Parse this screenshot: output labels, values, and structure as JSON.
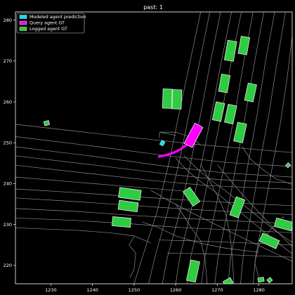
{
  "chart_data": {
    "type": "scatter",
    "title": "past: 1",
    "xlabel": "",
    "ylabel": "",
    "xlim": [
      1221.5,
      1288
    ],
    "ylim": [
      215.5,
      282
    ],
    "xticks": [
      1230,
      1240,
      1250,
      1260,
      1270,
      1280
    ],
    "yticks": [
      220,
      230,
      240,
      250,
      260,
      270,
      280
    ],
    "legend_position": "top-left",
    "legend": [
      {
        "label": "Modeled agent prediction",
        "color": "#00e5ee"
      },
      {
        "label": "Query agent GT",
        "color": "#ff00ff"
      },
      {
        "label": "Logged agent GT",
        "color": "#2ecc40"
      }
    ],
    "query_agent_gt": {
      "color": "#ff00ff",
      "x": [
        1256.0,
        1257.8,
        1259.6,
        1261.2,
        1262.5,
        1263.4,
        1264.0
      ],
      "y": [
        246.6,
        247.0,
        247.6,
        248.4,
        249.4,
        250.6,
        251.6
      ]
    },
    "query_agent_box": {
      "x": 1264.3,
      "y": 251.8,
      "length": 5.5,
      "width": 2.2,
      "heading_deg": 62
    },
    "modeled_agent_prediction": {
      "x": 1256.8,
      "y": 249.9,
      "length": 1.1,
      "width": 0.9,
      "heading_deg": 60
    },
    "logged_agents": [
      {
        "x": 1273.2,
        "y": 272.5,
        "length": 4.8,
        "width": 2.2,
        "heading_deg": 80
      },
      {
        "x": 1276.4,
        "y": 273.8,
        "length": 4.2,
        "width": 2.1,
        "heading_deg": 80
      },
      {
        "x": 1258.0,
        "y": 260.8,
        "length": 4.6,
        "width": 2.2,
        "heading_deg": 88
      },
      {
        "x": 1260.3,
        "y": 260.6,
        "length": 4.6,
        "width": 2.2,
        "heading_deg": 88
      },
      {
        "x": 1271.7,
        "y": 264.5,
        "length": 4.2,
        "width": 2.1,
        "heading_deg": 80
      },
      {
        "x": 1278.0,
        "y": 262.3,
        "length": 4.2,
        "width": 2.1,
        "heading_deg": 78
      },
      {
        "x": 1270.3,
        "y": 257.6,
        "length": 4.4,
        "width": 2.1,
        "heading_deg": 78
      },
      {
        "x": 1273.2,
        "y": 257.0,
        "length": 4.4,
        "width": 2.1,
        "heading_deg": 78
      },
      {
        "x": 1275.5,
        "y": 252.5,
        "length": 4.6,
        "width": 2.2,
        "heading_deg": 78
      },
      {
        "x": 1229.0,
        "y": 254.8,
        "length": 1.2,
        "width": 1.0,
        "heading_deg": 15
      },
      {
        "x": 1287.0,
        "y": 244.5,
        "length": 0.9,
        "width": 0.8,
        "heading_deg": 45
      },
      {
        "x": 1249.0,
        "y": 237.5,
        "length": 5.2,
        "width": 2.4,
        "heading_deg": -8
      },
      {
        "x": 1248.6,
        "y": 234.5,
        "length": 4.6,
        "width": 2.2,
        "heading_deg": -8
      },
      {
        "x": 1263.8,
        "y": 236.8,
        "length": 4.2,
        "width": 2.0,
        "heading_deg": -55
      },
      {
        "x": 1274.8,
        "y": 234.2,
        "length": 4.6,
        "width": 2.2,
        "heading_deg": 70
      },
      {
        "x": 1247.0,
        "y": 230.6,
        "length": 4.4,
        "width": 2.2,
        "heading_deg": -5
      },
      {
        "x": 1286.0,
        "y": 230.0,
        "length": 4.2,
        "width": 2.1,
        "heading_deg": -15
      },
      {
        "x": 1282.5,
        "y": 226.0,
        "length": 4.4,
        "width": 2.1,
        "heading_deg": -25
      },
      {
        "x": 1264.2,
        "y": 218.6,
        "length": 5.0,
        "width": 2.2,
        "heading_deg": 78
      },
      {
        "x": 1272.6,
        "y": 215.9,
        "length": 2.0,
        "width": 1.4,
        "heading_deg": 30
      },
      {
        "x": 1280.5,
        "y": 216.5,
        "length": 1.4,
        "width": 1.0,
        "heading_deg": 10
      },
      {
        "x": 1282.6,
        "y": 216.4,
        "length": 1.0,
        "width": 0.9,
        "heading_deg": 40
      }
    ],
    "colors": {
      "background": "#000000",
      "lanes": "#8a8a8a",
      "logged_fill": "#2ecc40",
      "logged_edge": "#e8e8e8"
    }
  },
  "road_lines": [
    [
      [
        1221.5,
        251.5
      ],
      [
        1240,
        249.2
      ],
      [
        1258,
        246.8
      ],
      [
        1272,
        245.2
      ],
      [
        1288,
        244.2
      ]
    ],
    [
      [
        1221.5,
        249.0
      ],
      [
        1240,
        246.7
      ],
      [
        1258,
        244.2
      ],
      [
        1272,
        242.6
      ],
      [
        1288,
        241.6
      ]
    ],
    [
      [
        1221.5,
        246.8
      ],
      [
        1240,
        244.6
      ],
      [
        1256,
        242.6
      ],
      [
        1270,
        241.0
      ],
      [
        1288,
        240.2
      ]
    ],
    [
      [
        1221.5,
        244.5
      ],
      [
        1240,
        242.4
      ],
      [
        1254,
        240.8
      ],
      [
        1268,
        239.5
      ],
      [
        1288,
        238.6
      ]
    ],
    [
      [
        1221.5,
        254.5
      ],
      [
        1245,
        251.8
      ],
      [
        1266,
        249.5
      ],
      [
        1288,
        247.6
      ]
    ],
    [
      [
        1221.5,
        241.6
      ],
      [
        1238,
        240.2
      ],
      [
        1252,
        239.0
      ],
      [
        1264,
        238.0
      ]
    ],
    [
      [
        1221.5,
        238.7
      ],
      [
        1236,
        237.8
      ],
      [
        1250,
        236.8
      ],
      [
        1262,
        236.0
      ],
      [
        1276,
        235.2
      ],
      [
        1288,
        234.6
      ]
    ],
    [
      [
        1221.5,
        236.5
      ],
      [
        1236,
        235.6
      ],
      [
        1250,
        234.6
      ],
      [
        1262,
        233.8
      ],
      [
        1276,
        233.0
      ],
      [
        1288,
        232.4
      ]
    ],
    [
      [
        1221.5,
        233.9
      ],
      [
        1236,
        233.2
      ],
      [
        1250,
        232.2
      ],
      [
        1262,
        231.5
      ],
      [
        1276,
        230.8
      ],
      [
        1288,
        230.2
      ]
    ],
    [
      [
        1221.5,
        231.6
      ],
      [
        1236,
        231.0
      ],
      [
        1250,
        230.1
      ],
      [
        1262,
        229.2
      ],
      [
        1276,
        228.6
      ],
      [
        1288,
        228.0
      ]
    ],
    [
      [
        1221.5,
        229.2
      ],
      [
        1236,
        228.6
      ],
      [
        1244,
        228.0
      ],
      [
        1250,
        227.2
      ],
      [
        1254,
        225.5
      ]
    ],
    [
      [
        1256,
        226.2
      ],
      [
        1264,
        226.0
      ],
      [
        1274,
        225.6
      ],
      [
        1288,
        225.0
      ]
    ],
    [
      [
        1258,
        223.0
      ],
      [
        1268,
        222.8
      ],
      [
        1278,
        222.4
      ],
      [
        1288,
        222.0
      ]
    ],
    [
      [
        1266,
        282.0
      ],
      [
        1263.5,
        270
      ],
      [
        1260.8,
        257
      ],
      [
        1258.6,
        246
      ],
      [
        1255.5,
        233
      ],
      [
        1252,
        222
      ],
      [
        1250,
        215.5
      ]
    ],
    [
      [
        1268.2,
        282.0
      ],
      [
        1265.8,
        270
      ],
      [
        1263.2,
        257
      ],
      [
        1261.0,
        246
      ],
      [
        1258.0,
        233
      ],
      [
        1255,
        222
      ],
      [
        1253.5,
        215.5
      ]
    ],
    [
      [
        1270.8,
        282.0
      ],
      [
        1268.4,
        270
      ],
      [
        1266.0,
        257
      ],
      [
        1263.8,
        246
      ],
      [
        1261.0,
        233
      ],
      [
        1258,
        222
      ],
      [
        1256.8,
        215.5
      ]
    ],
    [
      [
        1273.4,
        282.0
      ],
      [
        1271.0,
        270
      ],
      [
        1268.6,
        257
      ],
      [
        1266.4,
        246
      ],
      [
        1263.6,
        233
      ],
      [
        1261,
        222
      ],
      [
        1260,
        215.5
      ]
    ],
    [
      [
        1275.8,
        282.0
      ],
      [
        1273.4,
        270
      ],
      [
        1271.0,
        257
      ],
      [
        1268.8,
        246
      ],
      [
        1266.2,
        233
      ],
      [
        1263.6,
        222
      ],
      [
        1262.8,
        215.5
      ]
    ],
    [
      [
        1278.6,
        282.0
      ],
      [
        1276.4,
        270
      ],
      [
        1274.2,
        257
      ],
      [
        1272.0,
        246
      ],
      [
        1269.4,
        233
      ],
      [
        1267.0,
        222
      ],
      [
        1266.2,
        215.5
      ]
    ],
    [
      [
        1281.2,
        282.0
      ],
      [
        1279.0,
        270
      ],
      [
        1276.8,
        257
      ],
      [
        1274.8,
        246
      ],
      [
        1272.4,
        233
      ],
      [
        1270.2,
        222
      ],
      [
        1269.4,
        215.5
      ]
    ],
    [
      [
        1283.8,
        282.0
      ],
      [
        1281.6,
        270
      ],
      [
        1279.6,
        257
      ],
      [
        1277.6,
        246
      ],
      [
        1275.4,
        233
      ],
      [
        1273.2,
        222
      ],
      [
        1272.6,
        215.5
      ]
    ],
    [
      [
        1286.4,
        282.0
      ],
      [
        1284.4,
        270
      ],
      [
        1282.4,
        257
      ],
      [
        1280.4,
        246
      ],
      [
        1278.2,
        233
      ],
      [
        1276.2,
        222
      ],
      [
        1275.6,
        215.5
      ]
    ],
    [
      [
        1288.0,
        276.0
      ],
      [
        1286.8,
        266
      ],
      [
        1285.2,
        255
      ],
      [
        1283.2,
        244
      ],
      [
        1281.2,
        233
      ],
      [
        1279.2,
        222
      ],
      [
        1278.6,
        215.5
      ]
    ],
    [
      [
        1256.2,
        252.6
      ],
      [
        1260,
        252.6
      ],
      [
        1264,
        251.2
      ],
      [
        1266,
        249.4
      ]
    ],
    [
      [
        1256.0,
        251.2
      ],
      [
        1256.2,
        252.6
      ],
      [
        1260.0,
        251.8
      ]
    ],
    [
      [
        1249.0,
        217.0
      ],
      [
        1250.0,
        219.0
      ],
      [
        1250.4,
        223.0
      ],
      [
        1248.8,
        225.0
      ],
      [
        1250.0,
        227.0
      ]
    ],
    [
      [
        1260,
        246.2
      ],
      [
        1263,
        243.0
      ],
      [
        1266,
        240.5
      ],
      [
        1270,
        237.6
      ],
      [
        1276,
        232.6
      ],
      [
        1282,
        227.6
      ],
      [
        1288,
        222.8
      ]
    ],
    [
      [
        1262,
        246.8
      ],
      [
        1265,
        243.8
      ],
      [
        1268,
        241.2
      ],
      [
        1272,
        238.2
      ],
      [
        1278,
        233.4
      ],
      [
        1284,
        228.4
      ],
      [
        1288,
        225.6
      ]
    ],
    [
      [
        1254,
        238.4
      ],
      [
        1258,
        236.0
      ],
      [
        1264,
        232.8
      ],
      [
        1270,
        229.8
      ],
      [
        1278,
        225.8
      ],
      [
        1288,
        221.0
      ]
    ],
    [
      [
        1270,
        244.6
      ],
      [
        1273,
        241.0
      ],
      [
        1276,
        237.4
      ],
      [
        1280,
        233.0
      ],
      [
        1284,
        228.6
      ],
      [
        1288,
        224.6
      ]
    ],
    [
      [
        1266,
        244.8
      ],
      [
        1268,
        241.0
      ],
      [
        1270,
        237.0
      ],
      [
        1272,
        232.6
      ],
      [
        1273,
        228.0
      ],
      [
        1273.6,
        222.0
      ],
      [
        1274,
        215.5
      ]
    ],
    [
      [
        1260,
        235.0
      ],
      [
        1262,
        232.0
      ],
      [
        1264,
        228.8
      ],
      [
        1266,
        226.0
      ],
      [
        1267,
        222.0
      ],
      [
        1267.6,
        215.5
      ]
    ],
    [
      [
        1252,
        230.6
      ],
      [
        1256,
        229.2
      ],
      [
        1260,
        227.2
      ],
      [
        1266,
        225.4
      ],
      [
        1272,
        224.2
      ],
      [
        1280,
        223.2
      ]
    ],
    [
      [
        1276,
        249.0
      ],
      [
        1278,
        246.0
      ],
      [
        1281,
        243.4
      ],
      [
        1284,
        241.2
      ],
      [
        1288,
        239.8
      ]
    ],
    [
      [
        1286,
        232.0
      ],
      [
        1283,
        229.0
      ],
      [
        1280,
        225.0
      ],
      [
        1279,
        220.6
      ],
      [
        1280,
        217.0
      ]
    ]
  ]
}
